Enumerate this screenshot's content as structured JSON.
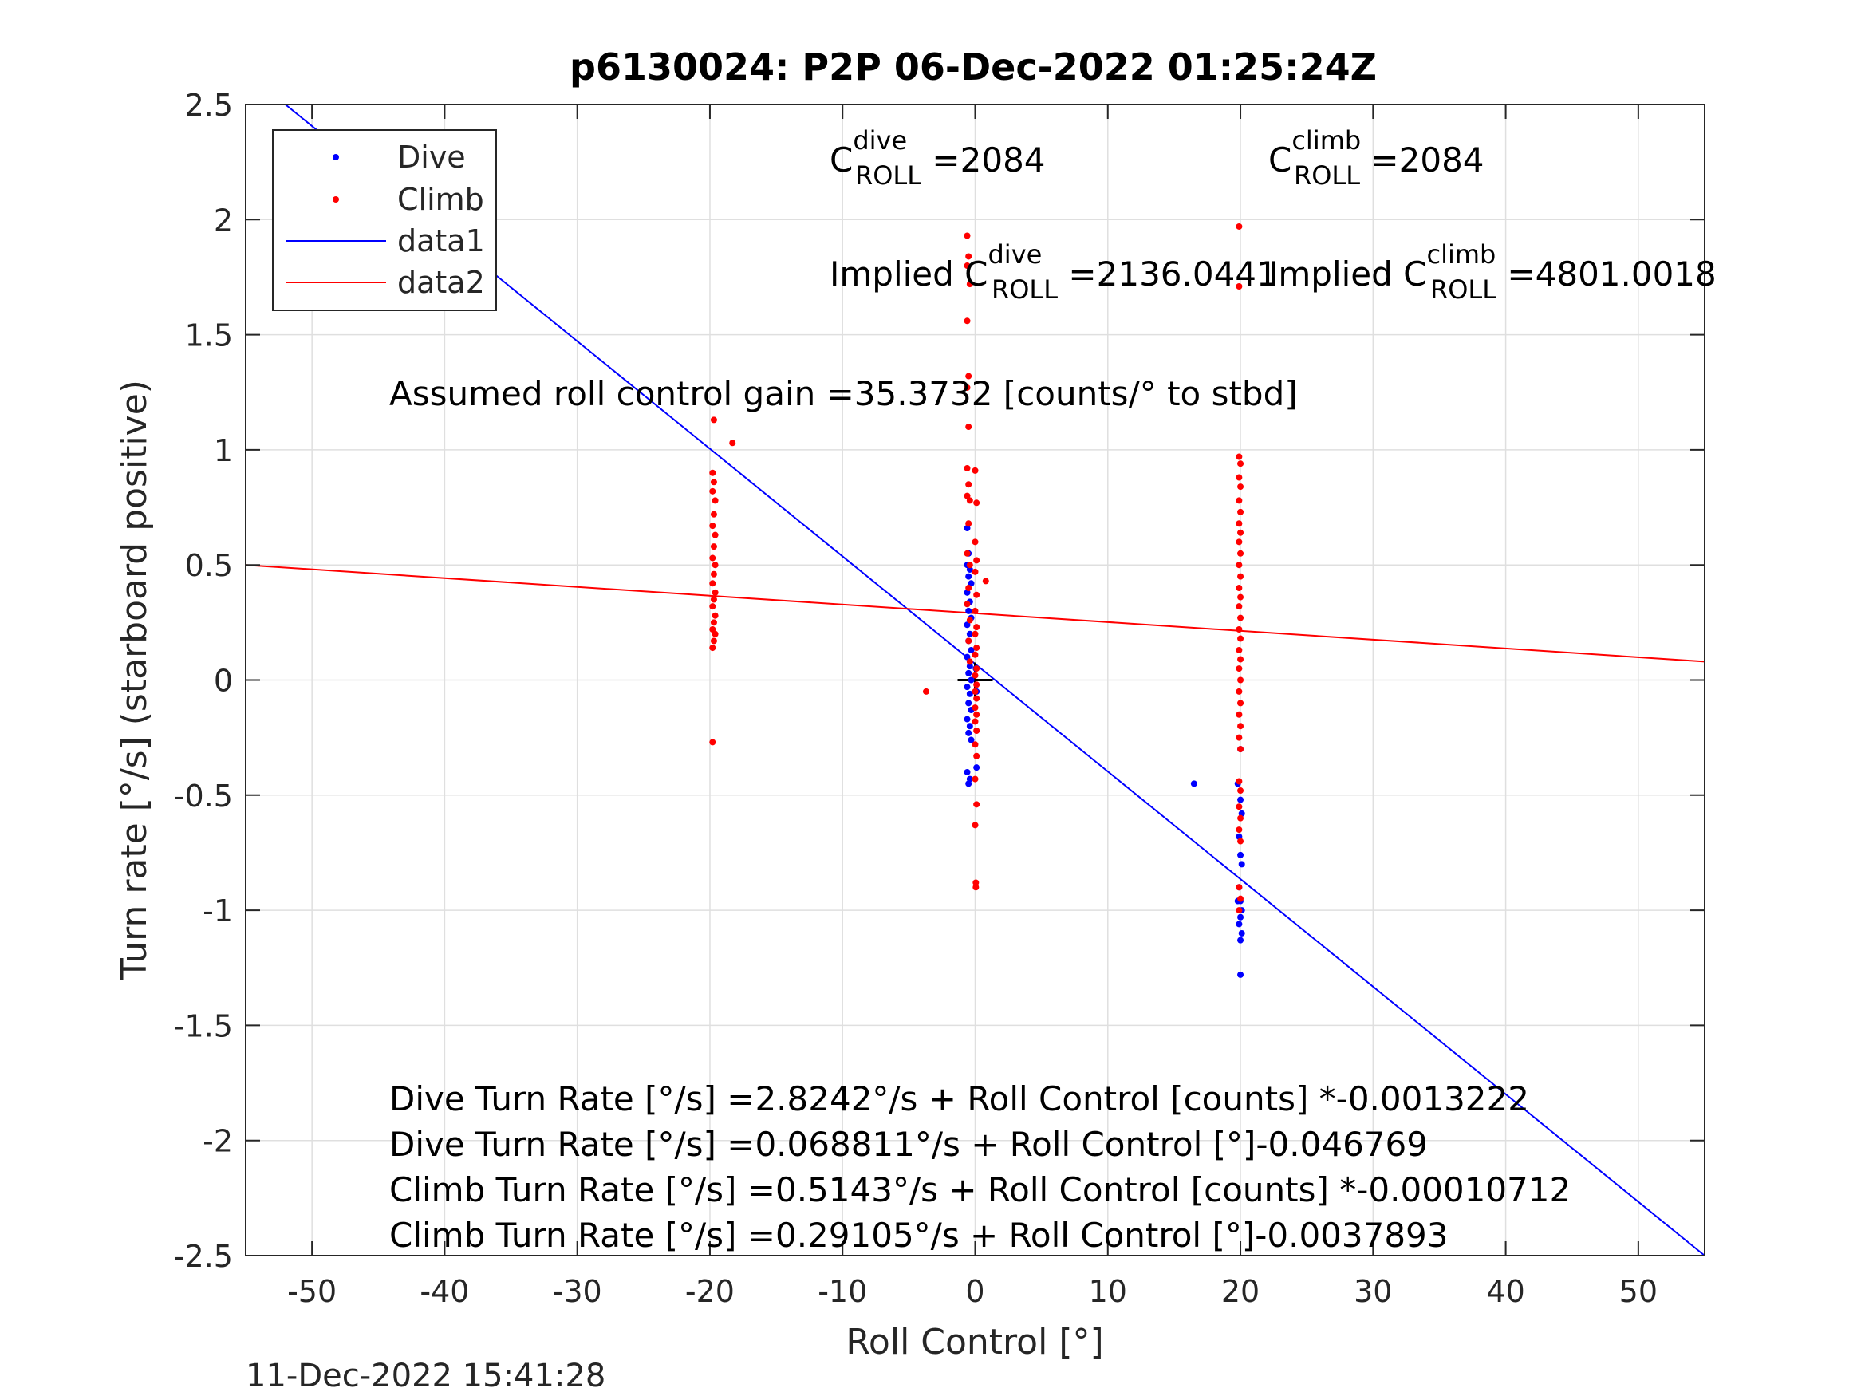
{
  "figure": {
    "timestamp": "11-Dec-2022 15:41:28"
  },
  "chart_data": {
    "type": "scatter",
    "title": "p6130024: P2P 06-Dec-2022 01:25:24Z",
    "xlabel": "Roll Control [°]",
    "ylabel": "Turn rate [°/s] (starboard positive)",
    "xlim": [
      -55,
      55
    ],
    "ylim": [
      -2.5,
      2.5
    ],
    "xticks": [
      -50,
      -40,
      -30,
      -20,
      -10,
      0,
      10,
      20,
      30,
      40,
      50
    ],
    "xtick_labels": [
      "-50",
      "-40",
      "-30",
      "-20",
      "-10",
      "0",
      "10",
      "20",
      "30",
      "40",
      "50"
    ],
    "yticks": [
      2.5,
      2,
      1.5,
      1,
      0.5,
      0,
      -0.5,
      -1,
      -1.5,
      -2,
      -2.5
    ],
    "ytick_labels": [
      "2.5",
      "2",
      "1.5",
      "1",
      "0.5",
      "0",
      "-0.5",
      "-1",
      "-1.5",
      "-2",
      "-2.5"
    ],
    "grid": true,
    "legend_position": "top-left",
    "legend": [
      {
        "label": "Dive",
        "kind": "marker",
        "color": "#0000ff"
      },
      {
        "label": "Climb",
        "kind": "marker",
        "color": "#ff0000"
      },
      {
        "label": "data1",
        "kind": "line",
        "color": "#0000ff"
      },
      {
        "label": "data2",
        "kind": "line",
        "color": "#ff0000"
      }
    ],
    "series": [
      {
        "name": "Dive",
        "kind": "scatter",
        "color": "#0000ff",
        "points": [
          [
            -0.6,
            0.66
          ],
          [
            -0.5,
            0.55
          ],
          [
            -0.6,
            0.5
          ],
          [
            -0.4,
            0.48
          ],
          [
            -0.5,
            0.45
          ],
          [
            -0.3,
            0.42
          ],
          [
            -0.6,
            0.38
          ],
          [
            -0.4,
            0.34
          ],
          [
            -0.5,
            0.3
          ],
          [
            -0.3,
            0.27
          ],
          [
            -0.6,
            0.24
          ],
          [
            -0.4,
            0.2
          ],
          [
            -0.5,
            0.17
          ],
          [
            -0.3,
            0.13
          ],
          [
            -0.6,
            0.1
          ],
          [
            -0.4,
            0.06
          ],
          [
            -0.5,
            0.03
          ],
          [
            -0.3,
            0.0
          ],
          [
            -0.6,
            -0.03
          ],
          [
            -0.4,
            -0.06
          ],
          [
            -0.5,
            -0.1
          ],
          [
            -0.3,
            -0.13
          ],
          [
            -0.6,
            -0.17
          ],
          [
            -0.4,
            -0.2
          ],
          [
            -0.5,
            -0.23
          ],
          [
            -0.3,
            -0.26
          ],
          [
            -0.6,
            -0.4
          ],
          [
            -0.4,
            -0.43
          ],
          [
            -0.5,
            -0.45
          ],
          [
            0.1,
            -0.38
          ],
          [
            0.05,
            0.05
          ],
          [
            0.1,
            -0.05
          ],
          [
            16.5,
            -0.45
          ],
          [
            20.0,
            -0.3
          ],
          [
            19.8,
            -0.45
          ],
          [
            20.0,
            -0.52
          ],
          [
            20.1,
            -0.58
          ],
          [
            19.9,
            -0.68
          ],
          [
            20.0,
            -0.76
          ],
          [
            20.1,
            -0.8
          ],
          [
            19.9,
            -0.9
          ],
          [
            20.0,
            -0.96
          ],
          [
            19.8,
            -0.96
          ],
          [
            20.1,
            -1.0
          ],
          [
            20.0,
            -1.03
          ],
          [
            19.9,
            -1.06
          ],
          [
            20.1,
            -1.1
          ],
          [
            20.0,
            -1.13
          ],
          [
            20.0,
            -1.28
          ]
        ]
      },
      {
        "name": "Climb",
        "kind": "scatter",
        "color": "#ff0000",
        "points": [
          [
            -19.7,
            1.13
          ],
          [
            -18.3,
            1.03
          ],
          [
            -19.8,
            0.9
          ],
          [
            -19.7,
            0.86
          ],
          [
            -19.8,
            0.82
          ],
          [
            -19.6,
            0.78
          ],
          [
            -19.7,
            0.72
          ],
          [
            -19.8,
            0.67
          ],
          [
            -19.6,
            0.63
          ],
          [
            -19.7,
            0.58
          ],
          [
            -19.8,
            0.53
          ],
          [
            -19.6,
            0.5
          ],
          [
            -19.7,
            0.46
          ],
          [
            -19.8,
            0.42
          ],
          [
            -19.6,
            0.38
          ],
          [
            -19.7,
            0.35
          ],
          [
            -19.8,
            0.32
          ],
          [
            -19.6,
            0.28
          ],
          [
            -19.7,
            0.25
          ],
          [
            -19.8,
            0.22
          ],
          [
            -19.6,
            0.2
          ],
          [
            -19.7,
            0.17
          ],
          [
            -19.8,
            0.14
          ],
          [
            -19.8,
            -0.27
          ],
          [
            -0.6,
            1.93
          ],
          [
            -0.5,
            1.84
          ],
          [
            -0.6,
            1.8
          ],
          [
            -0.4,
            1.72
          ],
          [
            -0.6,
            1.56
          ],
          [
            -0.5,
            1.32
          ],
          [
            -0.6,
            1.27
          ],
          [
            -0.5,
            1.1
          ],
          [
            -0.6,
            0.92
          ],
          [
            0.0,
            0.91
          ],
          [
            -0.5,
            0.85
          ],
          [
            -0.6,
            0.8
          ],
          [
            -0.4,
            0.78
          ],
          [
            0.1,
            0.77
          ],
          [
            -0.5,
            0.68
          ],
          [
            0.0,
            0.6
          ],
          [
            -0.6,
            0.55
          ],
          [
            0.1,
            0.52
          ],
          [
            -0.4,
            0.5
          ],
          [
            0.0,
            0.47
          ],
          [
            0.8,
            0.43
          ],
          [
            -0.5,
            0.4
          ],
          [
            0.1,
            0.37
          ],
          [
            -0.6,
            0.33
          ],
          [
            0.0,
            0.3
          ],
          [
            -0.4,
            0.26
          ],
          [
            0.1,
            0.23
          ],
          [
            0.0,
            0.2
          ],
          [
            -0.5,
            0.17
          ],
          [
            0.1,
            0.14
          ],
          [
            0.0,
            0.11
          ],
          [
            -0.4,
            0.08
          ],
          [
            0.1,
            0.05
          ],
          [
            0.0,
            0.02
          ],
          [
            0.1,
            -0.02
          ],
          [
            0.0,
            -0.05
          ],
          [
            0.1,
            -0.08
          ],
          [
            0.0,
            -0.12
          ],
          [
            0.1,
            -0.15
          ],
          [
            0.0,
            -0.18
          ],
          [
            0.1,
            -0.22
          ],
          [
            0.0,
            -0.28
          ],
          [
            0.1,
            -0.33
          ],
          [
            0.0,
            -0.43
          ],
          [
            0.1,
            -0.54
          ],
          [
            0.0,
            -0.63
          ],
          [
            0.05,
            -0.88
          ],
          [
            0.05,
            -0.9
          ],
          [
            -3.7,
            -0.05
          ],
          [
            19.9,
            1.97
          ],
          [
            19.9,
            1.71
          ],
          [
            19.9,
            0.97
          ],
          [
            20.0,
            0.94
          ],
          [
            19.9,
            0.88
          ],
          [
            20.0,
            0.84
          ],
          [
            19.9,
            0.78
          ],
          [
            20.0,
            0.73
          ],
          [
            19.9,
            0.68
          ],
          [
            20.0,
            0.64
          ],
          [
            19.9,
            0.6
          ],
          [
            20.0,
            0.55
          ],
          [
            19.9,
            0.5
          ],
          [
            20.0,
            0.45
          ],
          [
            19.9,
            0.4
          ],
          [
            20.0,
            0.36
          ],
          [
            19.9,
            0.32
          ],
          [
            20.0,
            0.27
          ],
          [
            19.9,
            0.22
          ],
          [
            20.0,
            0.18
          ],
          [
            19.9,
            0.13
          ],
          [
            20.0,
            0.09
          ],
          [
            19.9,
            0.05
          ],
          [
            20.0,
            0.0
          ],
          [
            19.9,
            -0.05
          ],
          [
            20.0,
            -0.1
          ],
          [
            19.9,
            -0.15
          ],
          [
            20.0,
            -0.2
          ],
          [
            19.9,
            -0.25
          ],
          [
            20.0,
            -0.3
          ],
          [
            19.9,
            -0.44
          ],
          [
            20.0,
            -0.48
          ],
          [
            19.9,
            -0.55
          ],
          [
            20.0,
            -0.6
          ],
          [
            19.9,
            -0.65
          ],
          [
            20.0,
            -0.7
          ],
          [
            19.9,
            -0.9
          ],
          [
            20.0,
            -0.95
          ],
          [
            19.9,
            -1.0
          ]
        ]
      },
      {
        "name": "data1",
        "kind": "line",
        "color": "#0000ff",
        "x": [
          -55,
          55
        ],
        "y": [
          2.64,
          -2.5
        ]
      },
      {
        "name": "data2",
        "kind": "line",
        "color": "#ff0000",
        "x": [
          -55,
          55
        ],
        "y": [
          0.5,
          0.08
        ]
      }
    ],
    "center_marker": {
      "x": 0,
      "y": 0
    },
    "annotations": {
      "c_dive": {
        "base": "C",
        "sup": "dive",
        "sub": "ROLL",
        "value": " =2084"
      },
      "c_climb": {
        "base": "C",
        "sup": "climb",
        "sub": "ROLL",
        "value": " =2084"
      },
      "implied_dive": {
        "base": "Implied C",
        "sup": "dive",
        "sub": "ROLL",
        "value": " =2136.0441"
      },
      "implied_climb": {
        "base": "Implied C",
        "sup": "climb",
        "sub": "ROLL",
        "value": " =4801.0018"
      },
      "gain": "Assumed roll control gain =35.3732 [counts/° to stbd]",
      "fit_lines": [
        "Dive Turn Rate [°/s] =2.8242°/s + Roll Control [counts] *-0.0013222",
        "Dive Turn Rate [°/s] =0.068811°/s + Roll Control [°]-0.046769",
        "Climb Turn Rate [°/s] =0.5143°/s + Roll Control [counts] *-0.00010712",
        "Climb Turn Rate [°/s] =0.29105°/s + Roll Control [°]-0.0037893"
      ]
    }
  }
}
